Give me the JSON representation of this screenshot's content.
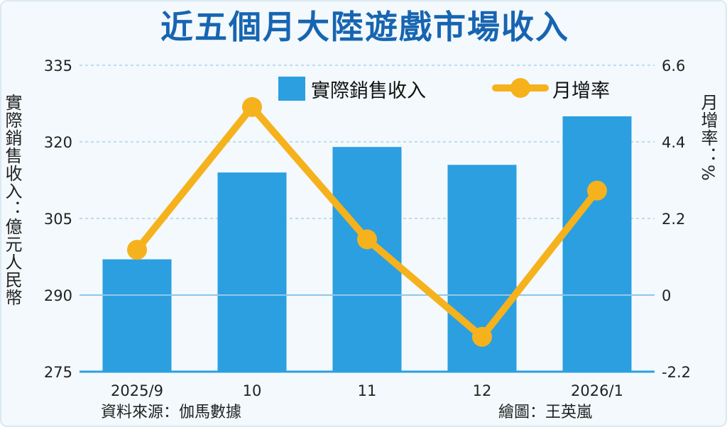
{
  "title": "近五個月大陸遊戲市場收入",
  "source": "資料來源：伽馬數據",
  "credit": "繪圖：王英嵐",
  "colors": {
    "bar": "#2b9fe0",
    "line": "#f5b21c",
    "title": "#1765b1",
    "axis": "#2b9fe0",
    "grid": "#a9d2ea"
  },
  "chart_data": {
    "type": "bar",
    "categories": [
      "2025/9",
      "10",
      "11",
      "12",
      "2026/1"
    ],
    "series": [
      {
        "name": "實際銷售收入",
        "type": "bar",
        "axis": "left",
        "values": [
          297,
          314,
          319,
          315.5,
          325
        ]
      },
      {
        "name": "月增率",
        "type": "line",
        "axis": "right",
        "values": [
          1.3,
          5.4,
          1.6,
          -1.2,
          3.0
        ]
      }
    ],
    "ylabel": "實際銷售收入：億元人民幣",
    "y2label": "月增率：%",
    "ylim": [
      275,
      335
    ],
    "y2lim": [
      -2.2,
      6.6
    ],
    "yticks": [
      "275",
      "290",
      "305",
      "320",
      "335"
    ],
    "y2ticks": [
      "-2.2",
      "0",
      "2.2",
      "4.4",
      "6.6"
    ],
    "grid": true,
    "legend": "top-right"
  }
}
